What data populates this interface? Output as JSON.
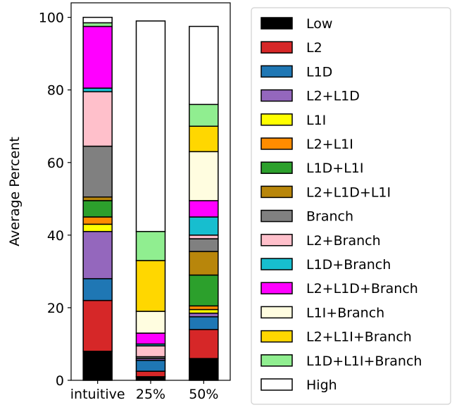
{
  "chart_data": {
    "type": "bar",
    "stacked": true,
    "title": "",
    "xlabel": "",
    "ylabel": "Average Percent",
    "ylim": [
      0,
      104
    ],
    "yticks": [
      0,
      20,
      40,
      60,
      80,
      100
    ],
    "categories": [
      "intuitive",
      "25%",
      "50%"
    ],
    "legend_position": "right (outside plot)",
    "grid": false,
    "series": [
      {
        "name": "Low",
        "color": "#000000",
        "values": [
          8.0,
          1.0,
          6.0
        ]
      },
      {
        "name": "L2",
        "color": "#d62728",
        "values": [
          14.0,
          1.5,
          8.0
        ]
      },
      {
        "name": "L1D",
        "color": "#1f77b4",
        "values": [
          6.0,
          3.0,
          3.5
        ]
      },
      {
        "name": "L2+L1D",
        "color": "#9467bd",
        "values": [
          13.0,
          0.5,
          1.0
        ]
      },
      {
        "name": "L1I",
        "color": "#ffff00",
        "values": [
          2.0,
          0.0,
          1.0
        ]
      },
      {
        "name": "L2+L1I",
        "color": "#ff8c00",
        "values": [
          2.0,
          0.0,
          1.0
        ]
      },
      {
        "name": "L1D+L1I",
        "color": "#2ca02c",
        "values": [
          4.5,
          0.0,
          8.5
        ]
      },
      {
        "name": "L2+L1D+L1I",
        "color": "#b8860b",
        "values": [
          1.0,
          0.0,
          6.5
        ]
      },
      {
        "name": "Branch",
        "color": "#808080",
        "values": [
          14.0,
          0.5,
          3.5
        ]
      },
      {
        "name": "L2+Branch",
        "color": "#ffc0cb",
        "values": [
          15.0,
          3.0,
          1.0
        ]
      },
      {
        "name": "L1D+Branch",
        "color": "#17becf",
        "values": [
          1.0,
          0.5,
          5.0
        ]
      },
      {
        "name": "L2+L1D+Branch",
        "color": "#ff00ff",
        "values": [
          17.0,
          3.0,
          4.5
        ]
      },
      {
        "name": "L1I+Branch",
        "color": "#fffde0",
        "values": [
          0.0,
          6.0,
          13.5
        ]
      },
      {
        "name": "L2+L1I+Branch",
        "color": "#ffd700",
        "values": [
          0.0,
          14.0,
          7.0
        ]
      },
      {
        "name": "L1D+L1I+Branch",
        "color": "#90ee90",
        "values": [
          1.0,
          8.0,
          6.0
        ]
      },
      {
        "name": "High",
        "color": "#ffffff",
        "values": [
          1.5,
          58.0,
          21.5
        ]
      }
    ]
  }
}
